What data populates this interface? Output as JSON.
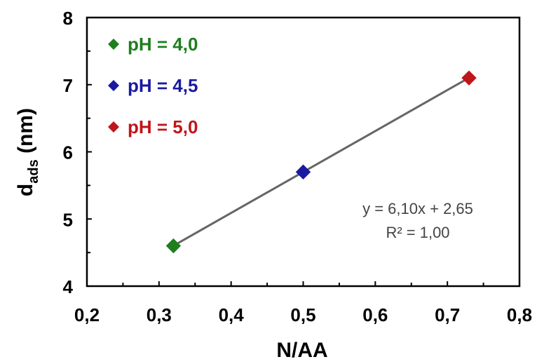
{
  "chart_data": {
    "type": "scatter",
    "title": "",
    "xlabel": "N/AA",
    "ylabel_main": "d",
    "ylabel_sub": "ads",
    "ylabel_unit": " (nm)",
    "xlim": [
      0.2,
      0.8
    ],
    "ylim": [
      4,
      8
    ],
    "x_ticks": [
      "0,2",
      "0,3",
      "0,4",
      "0,5",
      "0,6",
      "0,7",
      "0,8"
    ],
    "y_ticks": [
      "4",
      "5",
      "6",
      "7",
      "8"
    ],
    "x_tick_values": [
      0.2,
      0.3,
      0.4,
      0.5,
      0.6,
      0.7,
      0.8
    ],
    "y_tick_values": [
      4,
      5,
      6,
      7,
      8
    ],
    "grid": false,
    "legend_position": "top-left",
    "series": [
      {
        "name": "pH = 4,0",
        "color": "#1e7f1e",
        "points": [
          {
            "x": 0.32,
            "y": 4.6
          }
        ]
      },
      {
        "name": "pH = 4,5",
        "color": "#1a1aa0",
        "points": [
          {
            "x": 0.5,
            "y": 5.7
          }
        ]
      },
      {
        "name": "pH = 5,0",
        "color": "#c0151a",
        "points": [
          {
            "x": 0.73,
            "y": 7.1
          }
        ]
      }
    ],
    "trendline": {
      "slope": 6.1,
      "intercept": 2.65,
      "x_range": [
        0.32,
        0.73
      ],
      "color": "#666666",
      "equation_label": "y = 6,10x + 2,65",
      "r2_label": "R² = 1,00"
    }
  }
}
